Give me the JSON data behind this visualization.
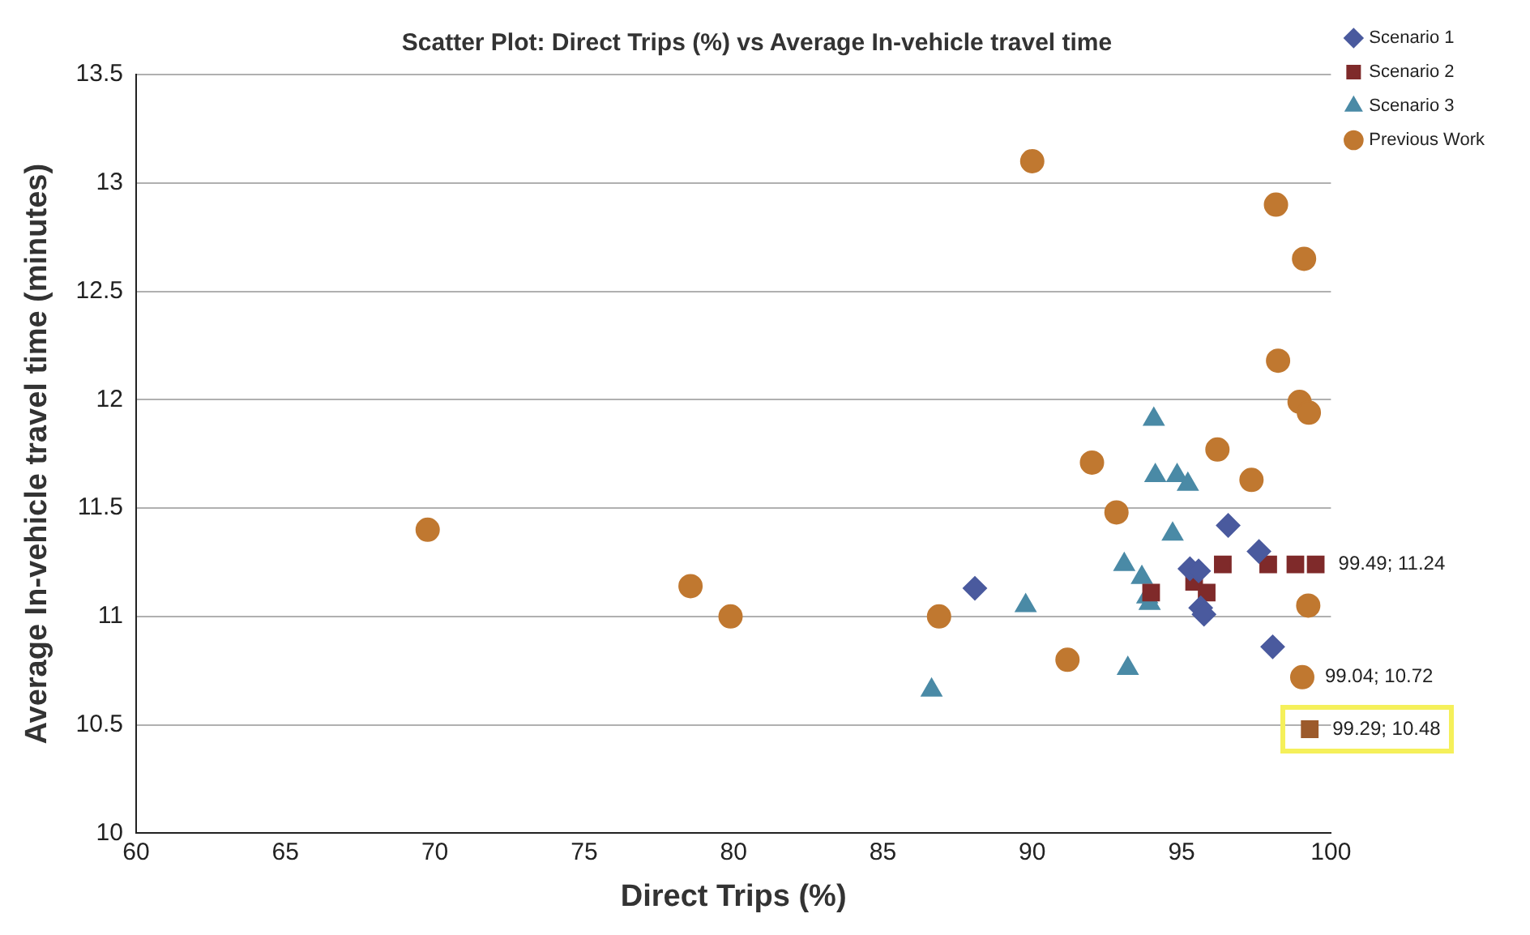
{
  "chart_data": {
    "type": "scatter",
    "title": "Scatter Plot: Direct Trips (%) vs Average In-vehicle travel time",
    "xlabel": "Direct Trips (%)",
    "ylabel": "Average In-vehicle travel time (minutes)",
    "xlim": [
      60,
      100
    ],
    "xticks": [
      60,
      65,
      70,
      75,
      80,
      85,
      90,
      95,
      100
    ],
    "ylim": [
      10,
      13.5
    ],
    "yticks": [
      10,
      10.5,
      11,
      11.5,
      12,
      12.5,
      13,
      13.5
    ],
    "grid": "y",
    "legend": "right",
    "series": [
      {
        "name": "Scenario 1",
        "color": "#4a5a9e",
        "marker": "diamond",
        "x": [
          88.08,
          96.56,
          97.59,
          95.28,
          95.57,
          95.64,
          95.75,
          98.05
        ],
        "values": [
          11.13,
          11.42,
          11.3,
          11.22,
          11.21,
          11.04,
          11.01,
          10.86
        ]
      },
      {
        "name": "Scenario 2",
        "color": "#7f2a2a",
        "marker": "square",
        "x": [
          96.38,
          97.9,
          98.81,
          99.49,
          93.98,
          95.42,
          95.84
        ],
        "values": [
          11.24,
          11.24,
          11.24,
          11.24,
          11.11,
          11.16,
          11.11
        ]
      },
      {
        "name": "Scenario 3",
        "color": "#4a8aa6",
        "marker": "triangle",
        "x": [
          94.07,
          94.12,
          94.85,
          95.21,
          94.7,
          93.08,
          93.67,
          93.85,
          93.93,
          89.78,
          93.2,
          86.63
        ],
        "values": [
          11.91,
          11.65,
          11.65,
          11.61,
          11.38,
          11.24,
          11.18,
          11.09,
          11.06,
          11.05,
          10.76,
          10.66
        ]
      },
      {
        "name": "Previous Work",
        "color": "#c07830",
        "marker": "circle",
        "x": [
          98.23,
          98.95,
          99.26,
          96.2,
          92,
          97.34,
          92.82,
          86.88,
          91.18,
          99.24,
          99.04,
          98.16,
          99.1,
          90,
          69.76,
          78.56,
          79.9
        ],
        "values": [
          12.18,
          11.99,
          11.94,
          11.77,
          11.71,
          11.63,
          11.48,
          11,
          10.8,
          11.05,
          10.72,
          12.9,
          12.65,
          13.1,
          11.4,
          11.14,
          11
        ]
      },
      {
        "color": "#9c5a2c",
        "marker": "square",
        "x": [
          99.29
        ],
        "values": [
          10.48
        ]
      }
    ],
    "annotations": [
      {
        "text": "99.49; 11.24",
        "x": 99.49,
        "y": 11.24
      },
      {
        "text": "99.04; 10.72",
        "x": 99.04,
        "y": 10.72
      },
      {
        "text": "99.29; 10.48",
        "x": 99.29,
        "y": 10.48
      }
    ]
  }
}
